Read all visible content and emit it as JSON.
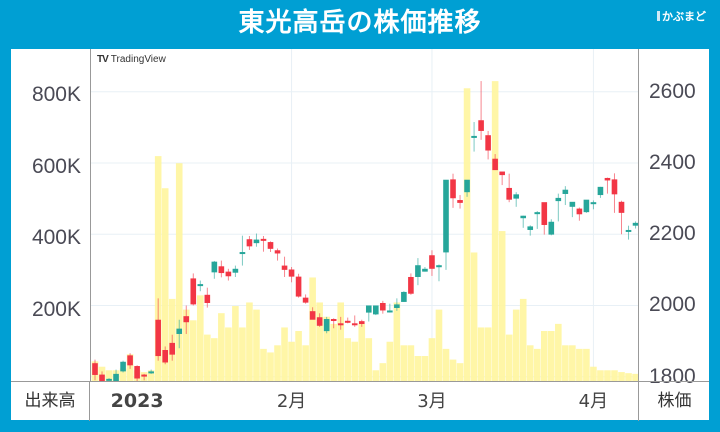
{
  "header": {
    "title": "東光高岳の株価推移",
    "brand": "かぶまど"
  },
  "watermark": "TradingView",
  "footer": {
    "left_label": "出来高",
    "right_label": "株価"
  },
  "colors": {
    "up": "#26a69a",
    "down": "#f23645",
    "volume": "#fff59d",
    "background": "#009fd3",
    "grid": "#e8f0f6"
  },
  "chart_data": {
    "type": "candlestick+bar",
    "title": "東光高岳の株価推移",
    "x_ticks": [
      {
        "label": "2023",
        "index": 6,
        "bold": true
      },
      {
        "label": "2月",
        "index": 28
      },
      {
        "label": "3月",
        "index": 48
      },
      {
        "label": "4月",
        "index": 71
      }
    ],
    "y_left": {
      "label": "出来高",
      "ticks": [
        "800K",
        "600K",
        "400K",
        "200K"
      ],
      "values": [
        800000,
        600000,
        400000,
        200000
      ],
      "range": [
        0,
        930000
      ]
    },
    "y_right": {
      "label": "株価",
      "ticks": [
        "2600",
        "2400",
        "2200",
        "2000",
        "1800"
      ],
      "values": [
        2600,
        2400,
        2200,
        2000,
        1800
      ],
      "range": [
        1788,
        2720
      ]
    },
    "series": [
      {
        "name": "株価",
        "type": "candlestick",
        "ohlc": [
          [
            1838,
            1848,
            1790,
            1805
          ],
          [
            1806,
            1815,
            1772,
            1785
          ],
          [
            1794,
            1796,
            1790,
            1794
          ],
          [
            1785,
            1820,
            1782,
            1808
          ],
          [
            1815,
            1845,
            1812,
            1842
          ],
          [
            1860,
            1866,
            1822,
            1832
          ],
          [
            1830,
            1832,
            1785,
            1795
          ],
          [
            1806,
            1808,
            1790,
            1803
          ],
          [
            1810,
            1820,
            1808,
            1815
          ],
          [
            1960,
            2020,
            1845,
            1858
          ],
          [
            1875,
            1885,
            1835,
            1840
          ],
          [
            1895,
            1918,
            1845,
            1862
          ],
          [
            1920,
            1960,
            1880,
            1935
          ],
          [
            1970,
            2000,
            1920,
            1953
          ],
          [
            2076,
            2090,
            2000,
            2003
          ],
          [
            2060,
            2070,
            2040,
            2060
          ],
          [
            2030,
            2050,
            1994,
            2007
          ],
          [
            2093,
            2125,
            2075,
            2123
          ],
          [
            2110,
            2126,
            2079,
            2091
          ],
          [
            2095,
            2103,
            2070,
            2082
          ],
          [
            2092,
            2112,
            2080,
            2103
          ],
          [
            2145,
            2196,
            2112,
            2150
          ],
          [
            2186,
            2195,
            2156,
            2166
          ],
          [
            2175,
            2202,
            2165,
            2185
          ],
          [
            2187,
            2195,
            2151,
            2184
          ],
          [
            2178,
            2180,
            2150,
            2159
          ],
          [
            2155,
            2160,
            2126,
            2146
          ],
          [
            2112,
            2137,
            2080,
            2100
          ],
          [
            2101,
            2108,
            2065,
            2081
          ],
          [
            2081,
            2089,
            2022,
            2025
          ],
          [
            2022,
            2031,
            2005,
            2008
          ],
          [
            1984,
            1995,
            1963,
            1960
          ],
          [
            1967,
            1978,
            1940,
            1943
          ],
          [
            1928,
            1968,
            1922,
            1962
          ],
          [
            1962,
            1964,
            1936,
            1957
          ],
          [
            1950,
            1968,
            1932,
            1948
          ],
          [
            1957,
            1966,
            1950,
            1956
          ],
          [
            1950,
            1972,
            1940,
            1946
          ],
          [
            1956,
            1960,
            1940,
            1948
          ],
          [
            1980,
            1995,
            1955,
            2000
          ],
          [
            1975,
            2000,
            1973,
            2000
          ],
          [
            2007,
            2013,
            1977,
            1986
          ],
          [
            1983,
            2005,
            1980,
            1986
          ],
          [
            1993,
            2020,
            1985,
            2003
          ],
          [
            2010,
            2040,
            2010,
            2038
          ],
          [
            2080,
            2090,
            2030,
            2033
          ],
          [
            2080,
            2133,
            2057,
            2113
          ],
          [
            2095,
            2108,
            2095,
            2103
          ],
          [
            2141,
            2155,
            2083,
            2103
          ],
          [
            2110,
            2115,
            2068,
            2113
          ],
          [
            2149,
            2218,
            2100,
            2353
          ],
          [
            2354,
            2370,
            2274,
            2301
          ],
          [
            2296,
            2310,
            2272,
            2288
          ],
          [
            2318,
            2335,
            2305,
            2353
          ],
          [
            2471,
            2515,
            2432,
            2476
          ],
          [
            2520,
            2630,
            2465,
            2490
          ],
          [
            2478,
            2490,
            2410,
            2435
          ],
          [
            2412,
            2425,
            2392,
            2380
          ],
          [
            2376,
            2370,
            2338,
            2366
          ],
          [
            2330,
            2370,
            2290,
            2297
          ],
          [
            2300,
            2318,
            2277,
            2312
          ],
          [
            2245,
            2252,
            2218,
            2252
          ],
          [
            2212,
            2225,
            2196,
            2222
          ],
          [
            2260,
            2265,
            2215,
            2262
          ],
          [
            2290,
            2275,
            2199,
            2226
          ],
          [
            2199,
            2242,
            2197,
            2235
          ],
          [
            2293,
            2314,
            2236,
            2302
          ],
          [
            2313,
            2335,
            2282,
            2325
          ],
          [
            2277,
            2285,
            2248,
            2291
          ],
          [
            2272,
            2275,
            2238,
            2256
          ],
          [
            2262,
            2276,
            2260,
            2297
          ],
          [
            2285,
            2295,
            2270,
            2290
          ],
          [
            2310,
            2333,
            2302,
            2333
          ],
          [
            2358,
            2359,
            2314,
            2351
          ],
          [
            2354,
            2371,
            2260,
            2312
          ],
          [
            2291,
            2294,
            2200,
            2260
          ],
          [
            2208,
            2224,
            2185,
            2212
          ],
          [
            2224,
            2236,
            2216,
            2232
          ]
        ]
      },
      {
        "name": "出来高",
        "type": "bar",
        "values": [
          55000,
          40000,
          30000,
          30000,
          35000,
          75000,
          30000,
          25000,
          30000,
          630000,
          540000,
          230000,
          610000,
          200000,
          170000,
          240000,
          130000,
          120000,
          190000,
          150000,
          210000,
          150000,
          220000,
          200000,
          90000,
          80000,
          100000,
          150000,
          110000,
          140000,
          100000,
          290000,
          220000,
          180000,
          160000,
          220000,
          120000,
          110000,
          160000,
          120000,
          30000,
          50000,
          110000,
          220000,
          100000,
          100000,
          70000,
          70000,
          120000,
          200000,
          90000,
          60000,
          50000,
          820000,
          360000,
          150000,
          150000,
          840000,
          420000,
          130000,
          200000,
          230000,
          100000,
          90000,
          140000,
          140000,
          160000,
          100000,
          100000,
          90000,
          90000,
          40000,
          30000,
          30000,
          30000,
          25000,
          22000,
          20000
        ]
      }
    ]
  }
}
